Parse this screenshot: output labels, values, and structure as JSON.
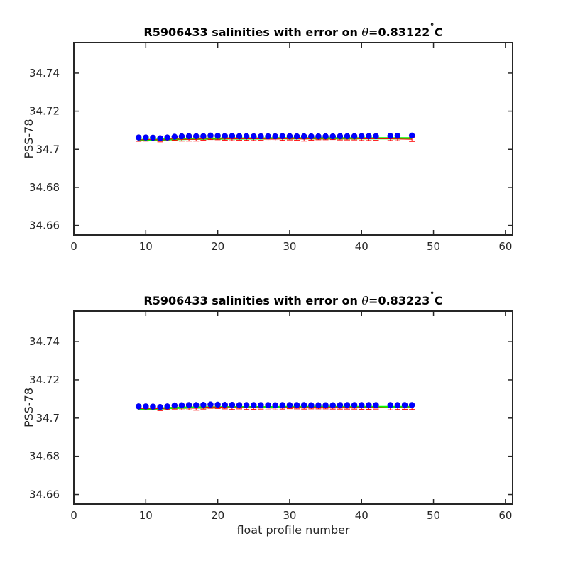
{
  "chart_data": [
    {
      "type": "scatter",
      "title": "R5906433 salinities with error on θ=0.83122˚C",
      "title_parts": {
        "prefix": "R5906433 salinities with error on ",
        "symbol": "θ",
        "value": "=0.83122",
        "degree": "˚",
        "unit": "C"
      },
      "xlabel": "",
      "ylabel": "PSS-78",
      "xlim": [
        0,
        61
      ],
      "ylim": [
        34.655,
        34.756
      ],
      "xticks": [
        0,
        10,
        20,
        30,
        40,
        50,
        60
      ],
      "yticks": [
        34.66,
        34.68,
        34.7,
        34.72,
        34.74
      ],
      "ytick_labels": [
        "34.66",
        "34.68",
        "34.7",
        "34.72",
        "34.74"
      ],
      "colors": {
        "float": "#0000ff",
        "mapped": "#ff0000",
        "calibrated": "#00ff00"
      },
      "x": [
        9,
        10,
        11,
        12,
        13,
        14,
        15,
        16,
        17,
        18,
        19,
        20,
        21,
        22,
        23,
        24,
        25,
        26,
        27,
        28,
        29,
        30,
        31,
        32,
        33,
        34,
        35,
        36,
        37,
        38,
        39,
        40,
        41,
        42,
        44,
        45,
        47
      ],
      "series": [
        {
          "values": [
            34.7062,
            34.7062,
            34.7061,
            34.7058,
            34.7062,
            34.7066,
            34.7068,
            34.7069,
            34.7069,
            34.7069,
            34.7072,
            34.7071,
            34.707,
            34.707,
            34.7069,
            34.7069,
            34.7068,
            34.7068,
            34.7068,
            34.7068,
            34.7069,
            34.7069,
            34.7068,
            34.7068,
            34.7068,
            34.7068,
            34.7068,
            34.7068,
            34.7069,
            34.7069,
            34.7069,
            34.7069,
            34.7069,
            34.7069,
            34.707,
            34.7071,
            34.7072
          ]
        },
        {
          "values": [
            34.705,
            34.705,
            34.7052,
            34.7048,
            34.7052,
            34.7055,
            34.7052,
            34.7052,
            34.7052,
            34.7056,
            34.7058,
            34.7058,
            34.7056,
            34.7054,
            34.7056,
            34.7055,
            34.7055,
            34.7055,
            34.7053,
            34.7053,
            34.7055,
            34.7056,
            34.7056,
            34.7053,
            34.7056,
            34.7057,
            34.7057,
            34.7058,
            34.7057,
            34.7057,
            34.7057,
            34.7055,
            34.7055,
            34.7056,
            34.7055,
            34.7054,
            34.7052
          ],
          "err": [
            0.0008,
            0.0007,
            0.0008,
            0.0009,
            0.0007,
            0.0008,
            0.0009,
            0.0009,
            0.0009,
            0.0008,
            0.0007,
            0.0008,
            0.0008,
            0.0009,
            0.0008,
            0.0008,
            0.0009,
            0.0008,
            0.0009,
            0.0009,
            0.0008,
            0.0007,
            0.0008,
            0.001,
            0.0008,
            0.0007,
            0.0007,
            0.0007,
            0.0008,
            0.0008,
            0.0008,
            0.0009,
            0.0009,
            0.0009,
            0.0009,
            0.0009,
            0.0011
          ]
        },
        {
          "values": [
            34.7049,
            34.7049,
            34.705,
            34.705,
            34.7052,
            34.7053,
            34.7054,
            34.7055,
            34.7055,
            34.7056,
            34.7056,
            34.7056,
            34.7057,
            34.7057,
            34.7057,
            34.7057,
            34.7057,
            34.7057,
            34.7057,
            34.7058,
            34.7058,
            34.7058,
            34.7058,
            34.7058,
            34.7058,
            34.7058,
            34.7058,
            34.7058,
            34.7058,
            34.7058,
            34.7058,
            34.7058,
            34.7058,
            34.7058,
            34.7058,
            34.7058,
            34.7058
          ]
        }
      ]
    },
    {
      "type": "scatter",
      "title": "R5906433 salinities with error on θ=0.83223˚C",
      "title_parts": {
        "prefix": "R5906433 salinities with error on ",
        "symbol": "θ",
        "value": "=0.83223",
        "degree": "˚",
        "unit": "C"
      },
      "xlabel": "float profile number",
      "ylabel": "PSS-78",
      "xlim": [
        0,
        61
      ],
      "ylim": [
        34.655,
        34.756
      ],
      "xticks": [
        0,
        10,
        20,
        30,
        40,
        50,
        60
      ],
      "yticks": [
        34.66,
        34.68,
        34.7,
        34.72,
        34.74
      ],
      "ytick_labels": [
        "34.66",
        "34.68",
        "34.7",
        "34.72",
        "34.74"
      ],
      "colors": {
        "float": "#0000ff",
        "mapped": "#ff0000",
        "calibrated": "#00ff00"
      },
      "x": [
        9,
        10,
        11,
        12,
        13,
        14,
        15,
        16,
        17,
        18,
        19,
        20,
        21,
        22,
        23,
        24,
        25,
        26,
        27,
        28,
        29,
        30,
        31,
        32,
        33,
        34,
        35,
        36,
        37,
        38,
        39,
        40,
        41,
        42,
        44,
        45,
        46,
        47
      ],
      "series": [
        {
          "values": [
            34.7061,
            34.7061,
            34.706,
            34.7058,
            34.7061,
            34.7066,
            34.7067,
            34.7068,
            34.7068,
            34.7069,
            34.7071,
            34.707,
            34.7069,
            34.7069,
            34.7068,
            34.7068,
            34.7068,
            34.7068,
            34.7068,
            34.7067,
            34.7068,
            34.7068,
            34.7068,
            34.7068,
            34.7067,
            34.7067,
            34.7067,
            34.7067,
            34.7068,
            34.7068,
            34.7068,
            34.7068,
            34.7068,
            34.7068,
            34.7068,
            34.7068,
            34.7068,
            34.7068
          ]
        },
        {
          "values": [
            34.705,
            34.705,
            34.7051,
            34.7048,
            34.7052,
            34.7055,
            34.7052,
            34.7052,
            34.7051,
            34.7055,
            34.7058,
            34.7058,
            34.7056,
            34.7054,
            34.7056,
            34.7054,
            34.7055,
            34.7055,
            34.7052,
            34.7052,
            34.7055,
            34.7056,
            34.7056,
            34.7055,
            34.7056,
            34.7056,
            34.7056,
            34.7056,
            34.7056,
            34.7056,
            34.7056,
            34.7055,
            34.7055,
            34.7056,
            34.7053,
            34.7054,
            34.7055,
            34.7054
          ],
          "err": [
            0.0008,
            0.0007,
            0.0008,
            0.0009,
            0.0007,
            0.0008,
            0.0009,
            0.0009,
            0.001,
            0.0008,
            0.0007,
            0.0008,
            0.0008,
            0.0009,
            0.0008,
            0.0009,
            0.0009,
            0.0008,
            0.0009,
            0.0009,
            0.0008,
            0.0007,
            0.0008,
            0.0008,
            0.0008,
            0.0008,
            0.0008,
            0.0009,
            0.0009,
            0.0009,
            0.0009,
            0.0009,
            0.0009,
            0.0009,
            0.001,
            0.0009,
            0.0009,
            0.0009
          ]
        },
        {
          "values": [
            34.7049,
            34.7049,
            34.705,
            34.705,
            34.7052,
            34.7053,
            34.7054,
            34.7055,
            34.7055,
            34.7056,
            34.7056,
            34.7056,
            34.7057,
            34.7057,
            34.7057,
            34.7057,
            34.7057,
            34.7057,
            34.7057,
            34.7057,
            34.7058,
            34.7058,
            34.7058,
            34.7058,
            34.7058,
            34.7058,
            34.7058,
            34.7058,
            34.7058,
            34.7058,
            34.7058,
            34.7058,
            34.7058,
            34.7058,
            34.7058,
            34.7058,
            34.7058,
            34.7058
          ]
        }
      ]
    }
  ]
}
